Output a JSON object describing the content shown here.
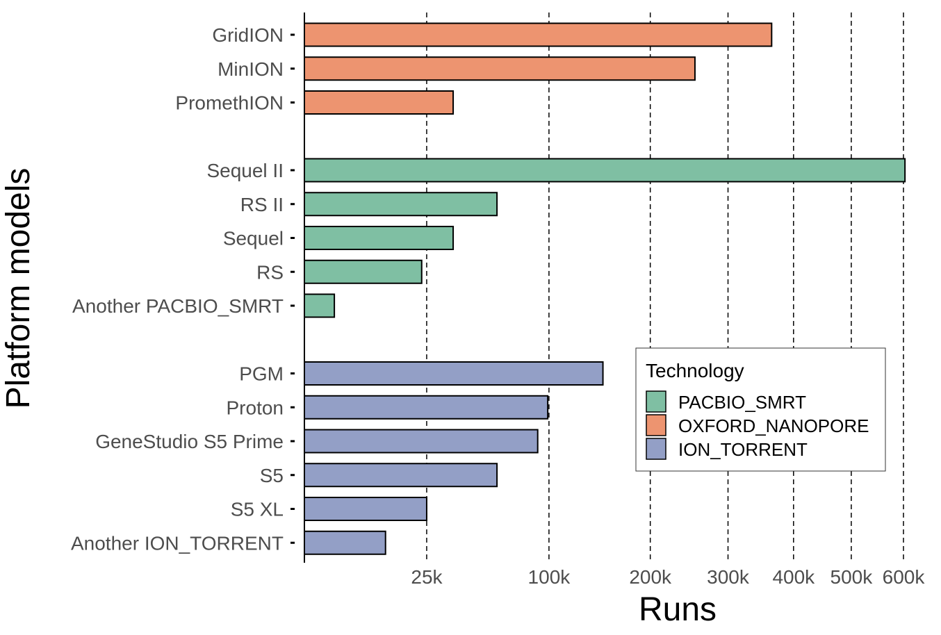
{
  "chart_data": {
    "type": "bar",
    "orientation": "horizontal",
    "xlabel": "Runs",
    "ylabel": "Platform models",
    "x_scale": "sqrt",
    "xlim": [
      0,
      605000
    ],
    "x_ticks": [
      25000,
      100000,
      200000,
      300000,
      400000,
      500000,
      600000
    ],
    "x_tick_labels": [
      "25k",
      "100k",
      "200k",
      "300k",
      "400k",
      "500k",
      "600k"
    ],
    "grid": "vertical dashed at x ticks",
    "legend": {
      "title": "Technology",
      "placement": "bottom-right",
      "entries": [
        {
          "name": "PACBIO_SMRT",
          "color": "#7fbfa3"
        },
        {
          "name": "OXFORD_NANOPORE",
          "color": "#ed9470"
        },
        {
          "name": "ION_TORRENT",
          "color": "#939fc6"
        }
      ]
    },
    "groups": [
      {
        "technology": "OXFORD_NANOPORE",
        "bars": [
          {
            "label": "GridION",
            "value": 365000
          },
          {
            "label": "MinION",
            "value": 255000
          },
          {
            "label": "PromethION",
            "value": 37000
          }
        ]
      },
      {
        "technology": "PACBIO_SMRT",
        "bars": [
          {
            "label": "Sequel II",
            "value": 603000
          },
          {
            "label": "RS II",
            "value": 62000
          },
          {
            "label": "Sequel",
            "value": 37000
          },
          {
            "label": "RS",
            "value": 23000
          },
          {
            "label": "Another PACBIO_SMRT",
            "value": 1500
          }
        ]
      },
      {
        "technology": "ION_TORRENT",
        "bars": [
          {
            "label": "PGM",
            "value": 149000
          },
          {
            "label": "Proton",
            "value": 99000
          },
          {
            "label": "GeneStudio S5 Prime",
            "value": 91000
          },
          {
            "label": "S5",
            "value": 62000
          },
          {
            "label": "S5 XL",
            "value": 25000
          },
          {
            "label": "Another ION_TORRENT",
            "value": 11000
          }
        ]
      }
    ]
  }
}
